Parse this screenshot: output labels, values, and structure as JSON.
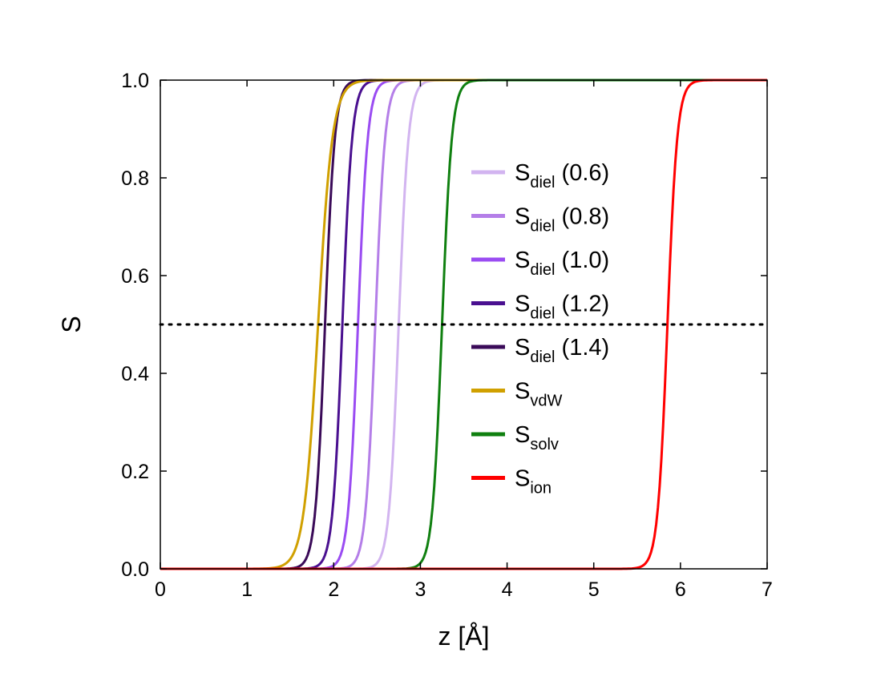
{
  "chart_data": {
    "type": "line",
    "title": "",
    "xlabel": "z [Å]",
    "ylabel": "S",
    "xlim": [
      0,
      7
    ],
    "ylim": [
      0,
      1
    ],
    "x_ticks": [
      "0",
      "1",
      "2",
      "3",
      "4",
      "5",
      "6",
      "7"
    ],
    "y_ticks": [
      "0.0",
      "0.2",
      "0.4",
      "0.6",
      "0.8",
      "1.0"
    ],
    "grid": false,
    "legend_position": "center-right",
    "reference_line": {
      "y": 0.5,
      "style": "dotted",
      "color": "#000000"
    },
    "series": [
      {
        "base": "S",
        "sub": "diel",
        "suffix": " (0.6)",
        "color": "#d2b4f0",
        "center": 2.75,
        "width": 0.26
      },
      {
        "base": "S",
        "sub": "diel",
        "suffix": " (0.8)",
        "color": "#b47ee8",
        "center": 2.48,
        "width": 0.26
      },
      {
        "base": "S",
        "sub": "diel",
        "suffix": " (1.0)",
        "color": "#9a4cf2",
        "center": 2.28,
        "width": 0.26
      },
      {
        "base": "S",
        "sub": "diel",
        "suffix": " (1.2)",
        "color": "#4a1090",
        "center": 2.1,
        "width": 0.26
      },
      {
        "base": "S",
        "sub": "diel",
        "suffix": " (1.4)",
        "color": "#3a0a58",
        "center": 1.9,
        "width": 0.26
      },
      {
        "base": "S",
        "sub": "vdW",
        "suffix": "",
        "color": "#d0a000",
        "center": 1.82,
        "width": 0.38
      },
      {
        "base": "S",
        "sub": "solv",
        "suffix": "",
        "color": "#108010",
        "center": 3.25,
        "width": 0.26
      },
      {
        "base": "S",
        "sub": "ion",
        "suffix": "",
        "color": "#ff0000",
        "center": 5.85,
        "width": 0.26
      }
    ]
  }
}
